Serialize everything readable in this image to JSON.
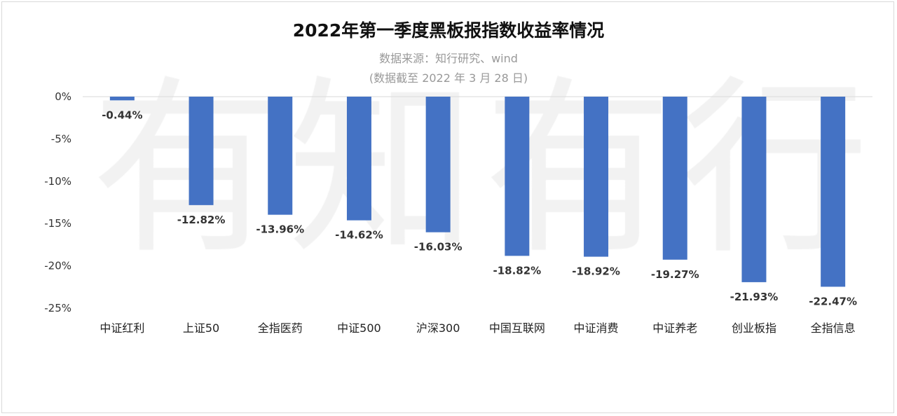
{
  "chart_data": {
    "type": "bar",
    "title": "2022年第一季度黑板报指数收益率情况",
    "subtitle": "数据来源：知行研究、wind",
    "note": "(数据截至 2022 年 3 月 28 日)",
    "watermark": "有知有行",
    "categories": [
      "中证红利",
      "上证50",
      "全指医药",
      "中证500",
      "沪深300",
      "中国互联网",
      "中证消费",
      "中证养老",
      "创业板指",
      "全指信息"
    ],
    "values": [
      -0.44,
      -12.82,
      -13.96,
      -14.62,
      -16.03,
      -18.82,
      -18.92,
      -19.27,
      -21.93,
      -22.47
    ],
    "data_labels": [
      "-0.44%",
      "-12.82%",
      "-13.96%",
      "-14.62%",
      "-16.03%",
      "-18.82%",
      "-18.92%",
      "-19.27%",
      "-21.93%",
      "-22.47%"
    ],
    "yticks": [
      0,
      -5,
      -10,
      -15,
      -20,
      -25
    ],
    "ytick_labels": [
      "0%",
      "-5%",
      "-10%",
      "-15%",
      "-20%",
      "-25%"
    ],
    "ylim": [
      -25,
      0
    ],
    "xlabel": "",
    "ylabel": "",
    "bar_color": "#4472c4",
    "grid": false
  }
}
